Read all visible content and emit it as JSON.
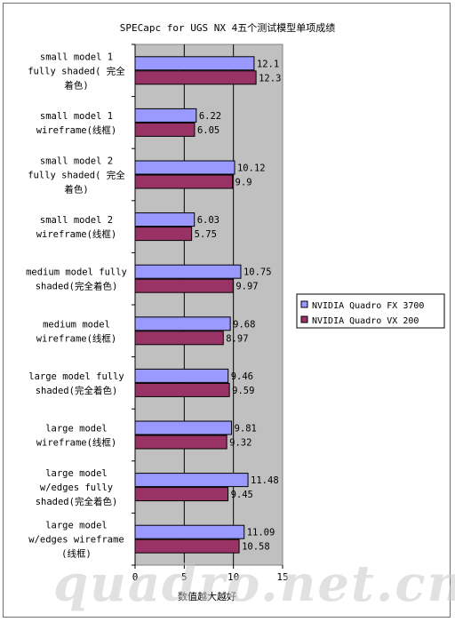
{
  "chart_data": {
    "type": "bar",
    "orientation": "horizontal",
    "title": "SPECapc for UGS NX 4五个测试模型单项成绩",
    "xlabel": "数值越大越好",
    "xlim": [
      0,
      15
    ],
    "xticks": [
      0,
      5,
      10,
      15
    ],
    "grid": true,
    "legend_position": "right",
    "categories": [
      [
        "small model 1",
        "fully shaded( 完全",
        "着色)"
      ],
      [
        "small model 1",
        "wireframe(线框)"
      ],
      [
        "small model 2",
        "fully shaded( 完全",
        "着色)"
      ],
      [
        "small model 2",
        "wireframe(线框)"
      ],
      [
        "medium model fully",
        "shaded(完全着色)"
      ],
      [
        "medium model",
        "wireframe(线框)"
      ],
      [
        "large model fully",
        "shaded(完全着色)"
      ],
      [
        "large model",
        "wireframe(线框)"
      ],
      [
        "large model",
        "w/edges fully",
        "shaded(完全着色)"
      ],
      [
        "large model",
        "w/edges wireframe",
        "(线框)"
      ]
    ],
    "series": [
      {
        "name": "NVIDIA Quadro FX 3700",
        "color": "#9999ff",
        "values": [
          12.1,
          6.22,
          10.12,
          6.03,
          10.75,
          9.68,
          9.46,
          9.81,
          11.48,
          11.09
        ],
        "labels": [
          "12.1",
          "6.22",
          "10.12",
          "6.03",
          "10.75",
          "9.68",
          "9.46",
          "9.81",
          "11.48",
          "11.09"
        ]
      },
      {
        "name": "NVIDIA Quadro VX 200",
        "color": "#993366",
        "values": [
          12.3,
          6.05,
          9.9,
          5.75,
          9.97,
          8.97,
          9.59,
          9.32,
          9.45,
          10.58
        ],
        "labels": [
          "12.3",
          "6.05",
          "9.9",
          "5.75",
          "9.97",
          "8.97",
          "9.59",
          "9.32",
          "9.45",
          "10.58"
        ]
      }
    ],
    "plot_background": "#c0c0c0"
  },
  "watermark": "quadro.net.cn"
}
